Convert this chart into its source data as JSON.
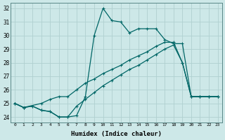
{
  "xlabel": "Humidex (Indice chaleur)",
  "bg_color": "#cde8e8",
  "grid_color": "#b0d0d0",
  "line_color": "#006666",
  "xlim": [
    -0.5,
    23.5
  ],
  "ylim": [
    23.6,
    32.4
  ],
  "yticks": [
    24,
    25,
    26,
    27,
    28,
    29,
    30,
    31,
    32
  ],
  "xticks": [
    0,
    1,
    2,
    3,
    4,
    5,
    6,
    7,
    8,
    9,
    10,
    11,
    12,
    13,
    14,
    15,
    16,
    17,
    18,
    19,
    20,
    21,
    22,
    23
  ],
  "line1_x": [
    0,
    1,
    2,
    3,
    4,
    5,
    6,
    7,
    8,
    9,
    10,
    11,
    12,
    13,
    14,
    15,
    16,
    17,
    18,
    19,
    20,
    21,
    22,
    23
  ],
  "line1_y": [
    25.0,
    24.7,
    24.8,
    24.5,
    24.4,
    24.0,
    24.0,
    24.1,
    25.5,
    30.0,
    32.0,
    31.1,
    31.0,
    30.2,
    30.5,
    30.5,
    30.5,
    29.7,
    29.4,
    29.4,
    25.5,
    25.5,
    25.5,
    25.5
  ],
  "line2_x": [
    0,
    1,
    3,
    4,
    5,
    6,
    7,
    8,
    9,
    10,
    11,
    12,
    13,
    14,
    15,
    16,
    17,
    18,
    19,
    20,
    21,
    22,
    23
  ],
  "line2_y": [
    25.0,
    24.7,
    25.0,
    25.3,
    25.5,
    25.5,
    26.0,
    26.5,
    26.8,
    27.2,
    27.5,
    27.8,
    28.2,
    28.5,
    28.8,
    29.2,
    29.5,
    29.5,
    28.0,
    25.5,
    25.5,
    25.5,
    25.5
  ],
  "line3_x": [
    0,
    1,
    2,
    3,
    4,
    5,
    6,
    7,
    8,
    9,
    10,
    11,
    12,
    13,
    14,
    15,
    16,
    17,
    18,
    19,
    20,
    21,
    22,
    23
  ],
  "line3_y": [
    25.0,
    24.7,
    24.8,
    24.5,
    24.4,
    24.0,
    24.0,
    24.8,
    25.3,
    25.8,
    26.3,
    26.7,
    27.1,
    27.5,
    27.8,
    28.2,
    28.6,
    29.0,
    29.3,
    28.0,
    25.5,
    25.5,
    25.5,
    25.5
  ]
}
